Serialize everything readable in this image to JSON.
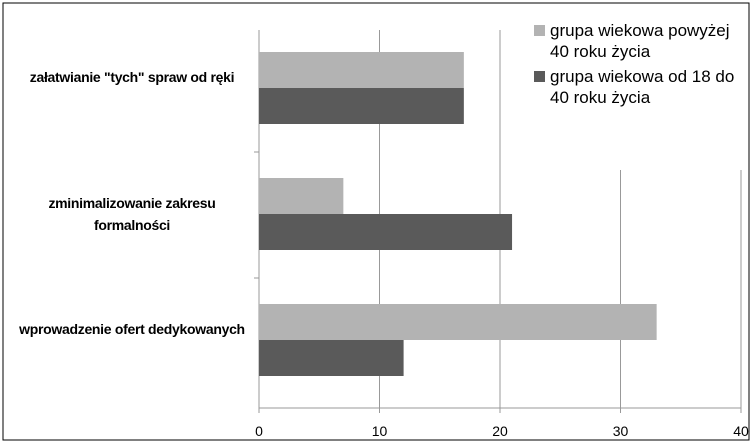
{
  "chart_data": {
    "type": "bar",
    "orientation": "horizontal",
    "categories": [
      "załatwianie \"tych\" spraw od ręki",
      "zminimalizowanie zakresu formalności",
      "wprowadzenie ofert dedykowanych"
    ],
    "series": [
      {
        "name": "grupa wiekowa powyżej 40 roku życia",
        "color": "#b3b3b3",
        "values": [
          17,
          7,
          33
        ]
      },
      {
        "name": "grupa wiekowa od 18 do 40 roku życia",
        "color": "#5a5a5a",
        "values": [
          17,
          21,
          12
        ]
      }
    ],
    "xlim": [
      0,
      40
    ],
    "xticks": [
      0,
      10,
      20,
      30,
      40
    ],
    "grid": true,
    "legend": "top-right"
  }
}
